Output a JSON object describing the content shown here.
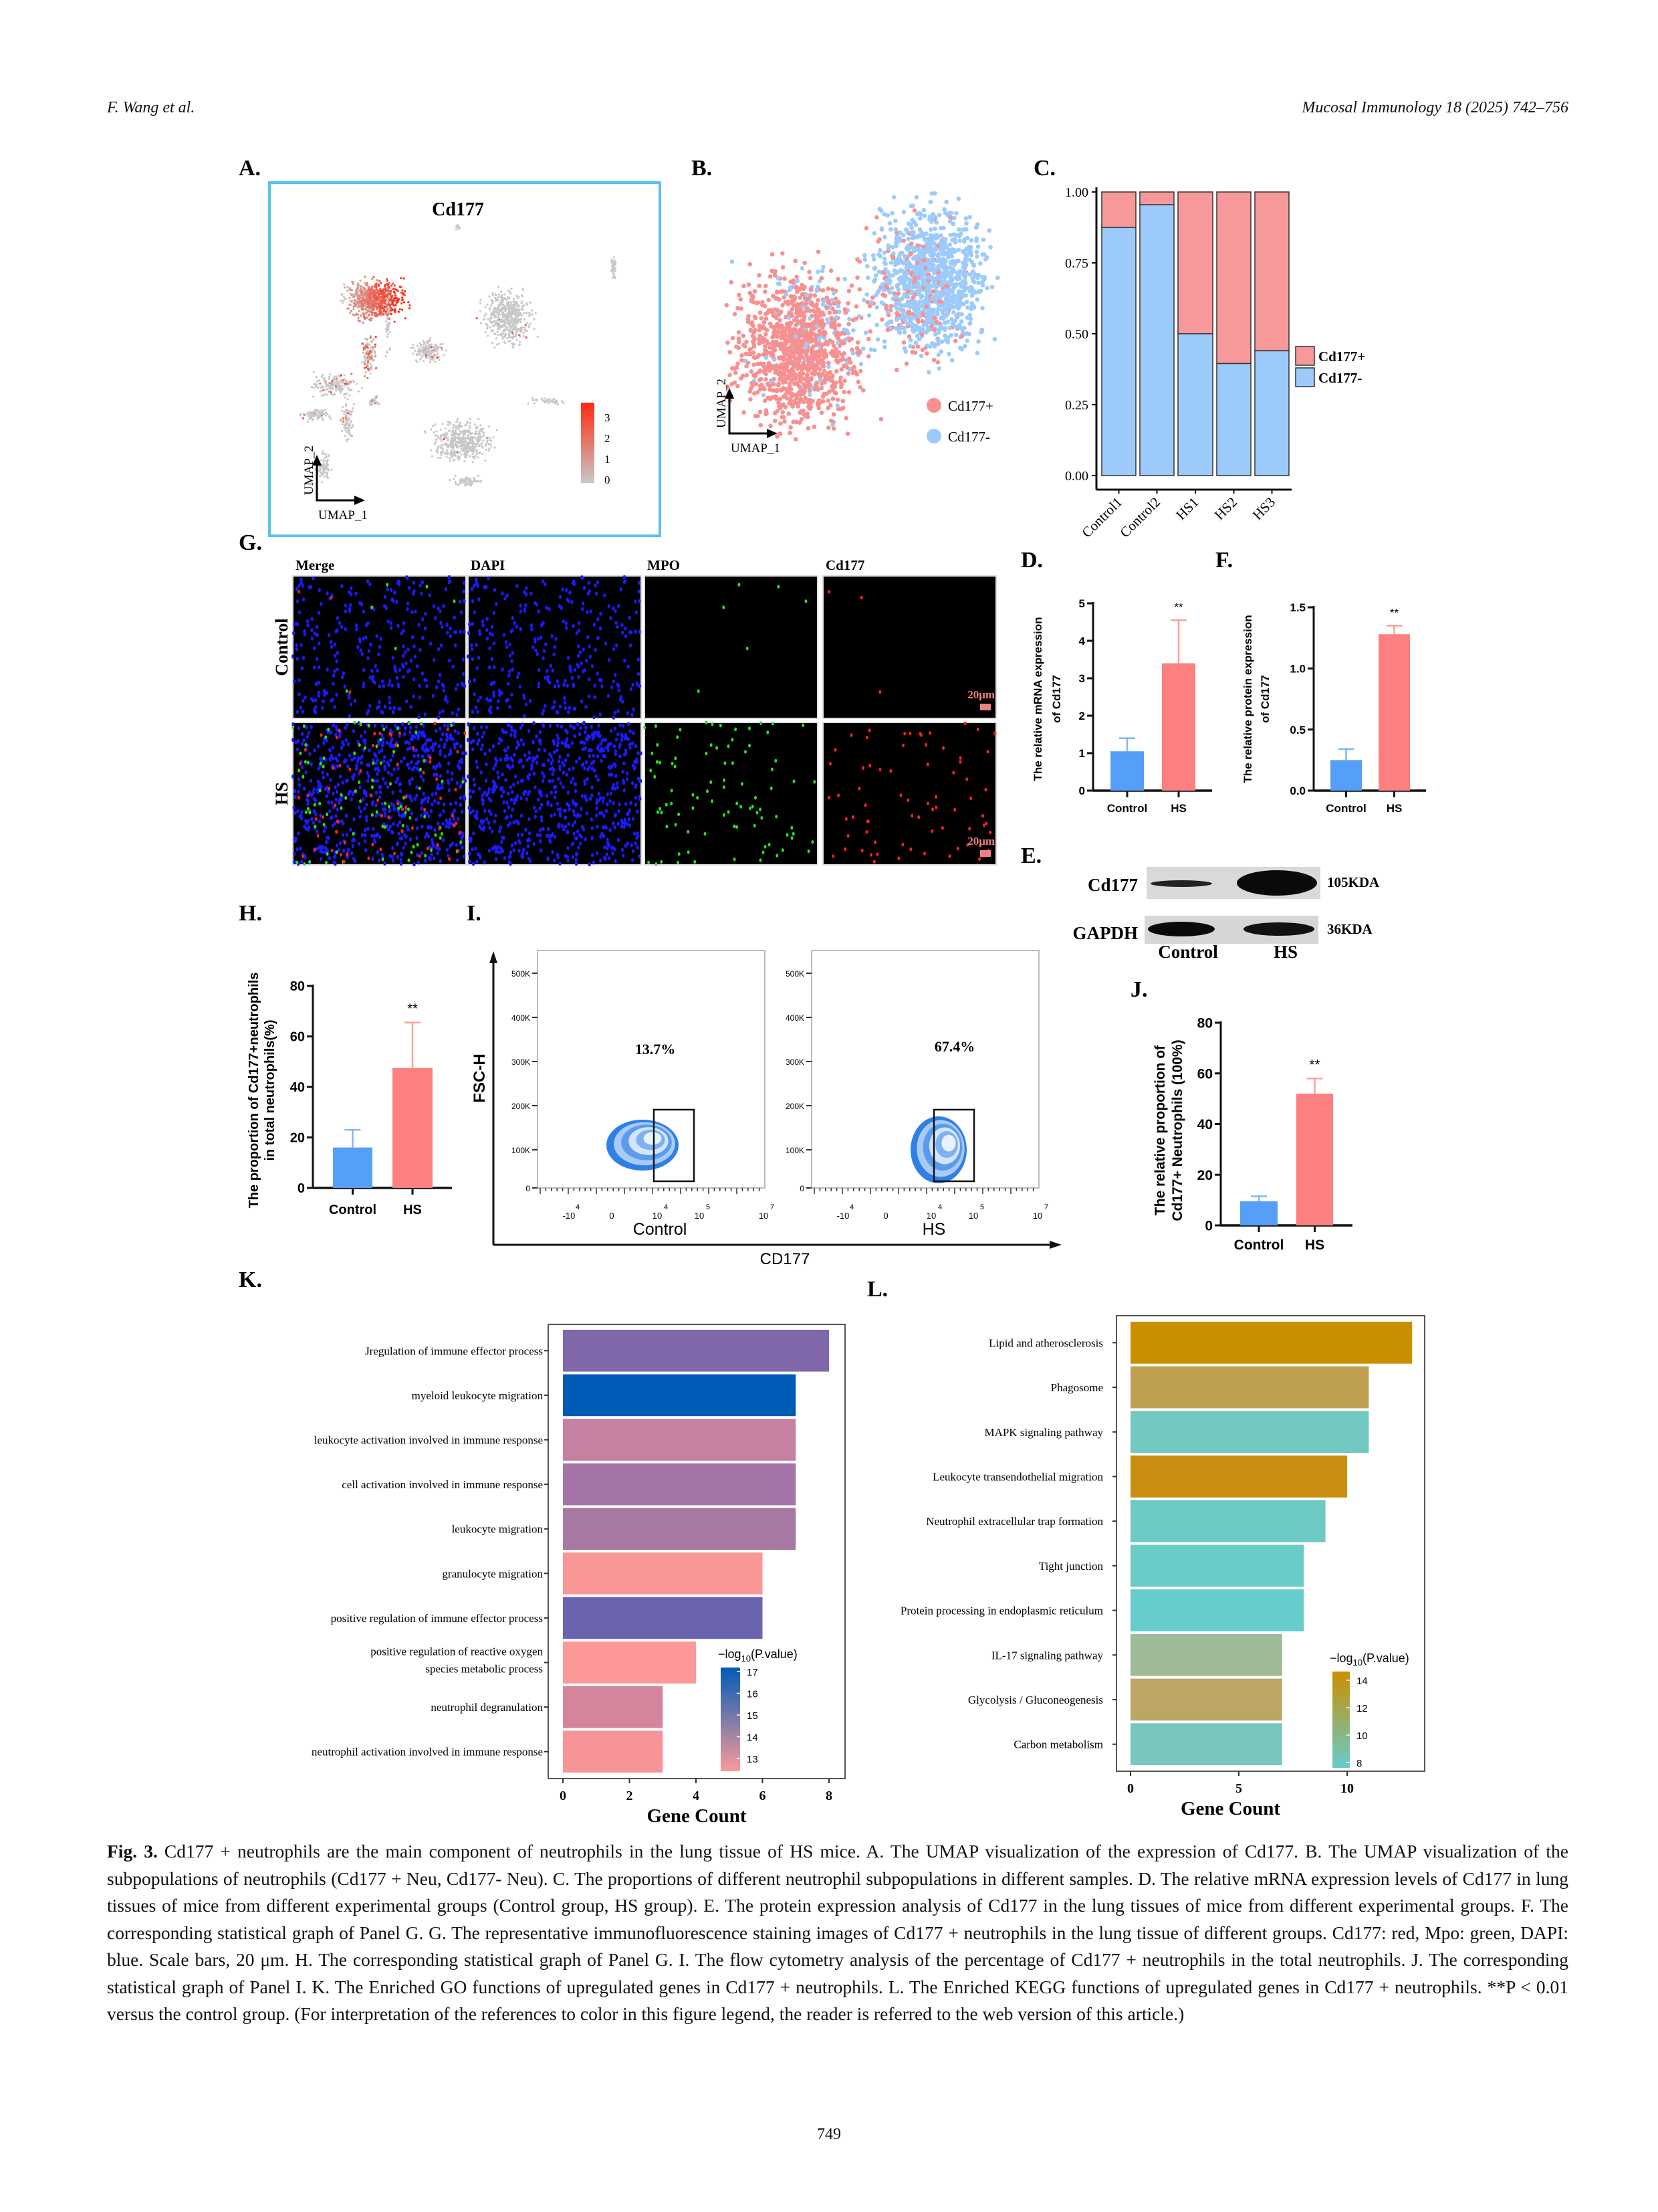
{
  "header": {
    "authors": "F. Wang et al.",
    "journal": "Mucosal Immunology 18 (2025) 742–756"
  },
  "panels": {
    "A": "A.",
    "B": "B.",
    "C": "C.",
    "D": "D.",
    "E": "E.",
    "F": "F.",
    "G": "G.",
    "H": "H.",
    "I": "I.",
    "J": "J.",
    "K": "K.",
    "L": "L."
  },
  "panel_A": {
    "title": "Cd177",
    "colorbar_ticks": [
      "3",
      "2",
      "1",
      "0"
    ],
    "umap_x": "UMAP_1",
    "umap_y": "UMAP_2",
    "colors": {
      "low": "#c8c8c8",
      "high": "#ff2a10",
      "frame": "#5bc0eb"
    }
  },
  "panel_B": {
    "legend": [
      {
        "label": "Cd177+",
        "color": "#f79090"
      },
      {
        "label": "Cd177-",
        "color": "#9ccbfb"
      }
    ],
    "umap_x": "UMAP_1",
    "umap_y": "UMAP_2"
  },
  "panel_G": {
    "columns": [
      "Merge",
      "DAPI",
      "MPO",
      "Cd177"
    ],
    "rows": [
      "Control",
      "HS"
    ],
    "scale_bar": "20μm"
  },
  "panel_E": {
    "proteins": [
      {
        "name": "Cd177",
        "size": "105KDA"
      },
      {
        "name": "GAPDH",
        "size": "36KDA"
      }
    ],
    "groups": [
      "Control",
      "HS"
    ]
  },
  "panel_I": {
    "y_label": "FSC-H",
    "x_label": "CD177",
    "y_ticks": [
      "0",
      "100K",
      "200K",
      "300K",
      "400K",
      "500K"
    ],
    "x_ticks": [
      {
        "base": "-10",
        "exp": "4"
      },
      {
        "base": "0",
        "exp": ""
      },
      {
        "base": "10",
        "exp": "4"
      },
      {
        "base": "10",
        "exp": "5"
      },
      {
        "base": "10",
        "exp": "7"
      }
    ],
    "plots": [
      {
        "group": "Control",
        "percent": "13.7%"
      },
      {
        "group": "HS",
        "percent": "67.4%"
      }
    ]
  },
  "chart_data": [
    {
      "panel": "C",
      "type": "bar",
      "stacked": true,
      "categories": [
        "Control1",
        "Control2",
        "HS1",
        "HS2",
        "HS3"
      ],
      "series": [
        {
          "name": "Cd177+",
          "values": [
            0.125,
            0.045,
            0.5,
            0.605,
            0.56
          ],
          "color": "#f7999a"
        },
        {
          "name": "Cd177-",
          "values": [
            0.875,
            0.955,
            0.5,
            0.395,
            0.44
          ],
          "color": "#9ccbfb"
        }
      ],
      "ylim": [
        0,
        1
      ],
      "yticks": [
        "0.00",
        "0.25",
        "0.50",
        "0.75",
        "1.00"
      ],
      "legend": "right"
    },
    {
      "panel": "D",
      "type": "bar",
      "categories": [
        "Control",
        "HS"
      ],
      "values": [
        1.05,
        3.4
      ],
      "error": [
        0.35,
        1.15
      ],
      "significance": [
        "",
        "**"
      ],
      "ylabel": [
        "The relative mRNA expression",
        "of Cd177"
      ],
      "ylim": [
        0,
        5
      ],
      "yticks": [
        "0",
        "1",
        "2",
        "3",
        "4",
        "5"
      ],
      "colors": [
        "#559ff8",
        "#fd7f7f"
      ]
    },
    {
      "panel": "F",
      "type": "bar",
      "categories": [
        "Control",
        "HS"
      ],
      "values": [
        0.25,
        1.28
      ],
      "error": [
        0.09,
        0.07
      ],
      "significance": [
        "",
        "**"
      ],
      "ylabel": [
        "The relative protein expression",
        "of Cd177"
      ],
      "ylim": [
        0,
        1.5
      ],
      "yticks": [
        "0.0",
        "0.5",
        "1.0",
        "1.5"
      ],
      "colors": [
        "#559ff8",
        "#fd7f7f"
      ]
    },
    {
      "panel": "H",
      "type": "bar",
      "categories": [
        "Control",
        "HS"
      ],
      "values": [
        16,
        47.5
      ],
      "error": [
        7,
        18
      ],
      "significance": [
        "",
        "**"
      ],
      "ylabel": [
        "The proportion of Cd177+neutrophils",
        "in total neutrophils(%)"
      ],
      "ylim": [
        0,
        80
      ],
      "yticks": [
        "0",
        "20",
        "40",
        "60",
        "80"
      ],
      "colors": [
        "#559ff8",
        "#fd7f7f"
      ]
    },
    {
      "panel": "J",
      "type": "bar",
      "categories": [
        "Control",
        "HS"
      ],
      "values": [
        9.5,
        52
      ],
      "error": [
        2,
        6
      ],
      "significance": [
        "",
        "**"
      ],
      "ylabel": [
        "The relative proportion of",
        "Cd177+ Neutrophils (100%)"
      ],
      "ylim": [
        0,
        80
      ],
      "yticks": [
        "0",
        "20",
        "40",
        "60",
        "80"
      ],
      "colors": [
        "#559ff8",
        "#fd7f7f"
      ]
    },
    {
      "panel": "K",
      "type": "bar",
      "orientation": "horizontal",
      "categories": [
        [
          "Jregulation of immune effector process"
        ],
        [
          "myeloid leukocyte migration"
        ],
        [
          "leukocyte activation involved in immune response"
        ],
        [
          "cell activation involved in immune response"
        ],
        [
          "leukocyte migration"
        ],
        [
          "granulocyte migration"
        ],
        [
          "positive regulation of immune effector process"
        ],
        [
          "positive regulation of reactive oxygen",
          "species metabolic process"
        ],
        [
          "neutrophil degranulation"
        ],
        [
          "neutrophil activation involved in immune response"
        ]
      ],
      "values": [
        8,
        7,
        7,
        7,
        7,
        6,
        6,
        4,
        3,
        3
      ],
      "colors": [
        "#8068ab",
        "#005bb7",
        "#c681a2",
        "#a474a6",
        "#a778a2",
        "#f99696",
        "#6a63af",
        "#fc9898",
        "#d4859c",
        "#f79497"
      ],
      "xlabel": "Gene Count",
      "xticks": [
        "0",
        "2",
        "4",
        "6",
        "8"
      ],
      "xlim": [
        0,
        8.5
      ],
      "colorbar": {
        "title": [
          "−log",
          "10",
          "(P.value)"
        ],
        "ticks": [
          "17",
          "16",
          "15",
          "14",
          "13"
        ],
        "low_color": "#fb9a9a",
        "high_color": "#005bb7"
      }
    },
    {
      "panel": "L",
      "type": "bar",
      "orientation": "horizontal",
      "categories": [
        [
          "Lipid and atherosclerosis"
        ],
        [
          "Phagosome"
        ],
        [
          "MAPK signaling pathway"
        ],
        [
          "Leukocyte transendothelial migration"
        ],
        [
          "Neutrophil extracellular trap formation"
        ],
        [
          "Tight junction"
        ],
        [
          "Protein processing in endoplasmic reticulum"
        ],
        [
          "IL-17 signaling pathway"
        ],
        [
          "Glycolysis / Gluconeogenesis"
        ],
        [
          "Carbon metabolism"
        ]
      ],
      "values": [
        13,
        11,
        11,
        10,
        9,
        8,
        8,
        7,
        7,
        7
      ],
      "colors": [
        "#ca8f00",
        "#bfa050",
        "#73c8c0",
        "#ca8f10",
        "#6dc9c4",
        "#6acbc7",
        "#66cccc",
        "#9eba96",
        "#bba665",
        "#78c7bf"
      ],
      "xlabel": "Gene Count",
      "xticks": [
        "0",
        "5",
        "10"
      ],
      "xlim": [
        0,
        13.5
      ],
      "colorbar": {
        "title": [
          "−log",
          "10",
          "(P.value)"
        ],
        "ticks": [
          "14",
          "12",
          "10",
          "8"
        ],
        "low_color": "#66cccc",
        "high_color": "#ca8f00"
      }
    }
  ],
  "caption": {
    "label": "Fig. 3.",
    "text": "Cd177 + neutrophils are the main component of neutrophils in the lung tissue of HS mice. A. The UMAP visualization of the expression of Cd177. B. The UMAP visualization of the subpopulations of neutrophils (Cd177 + Neu, Cd177- Neu). C. The proportions of different neutrophil subpopulations in different samples. D. The relative mRNA expression levels of Cd177 in lung tissues of mice from different experimental groups (Control group, HS group). E. The protein expression analysis of Cd177 in the lung tissues of mice from different experimental groups. F. The corresponding statistical graph of Panel G. G. The representative immunofluorescence staining images of Cd177 + neutrophils in the lung tissue of different groups. Cd177: red, Mpo: green, DAPI: blue. Scale bars, 20 μm. H. The corresponding statistical graph of Panel G. I. The flow cytometry analysis of the percentage of Cd177 + neutrophils in the total neutrophils. J. The corresponding statistical graph of Panel I. K. The Enriched GO functions of upregulated genes in Cd177 + neutrophils. L. The Enriched KEGG functions of upregulated genes in Cd177 + neutrophils. **P < 0.01 versus the control group. (For interpretation of the references to color in this figure legend, the reader is referred to the web version of this article.)"
  },
  "page_number": "749"
}
